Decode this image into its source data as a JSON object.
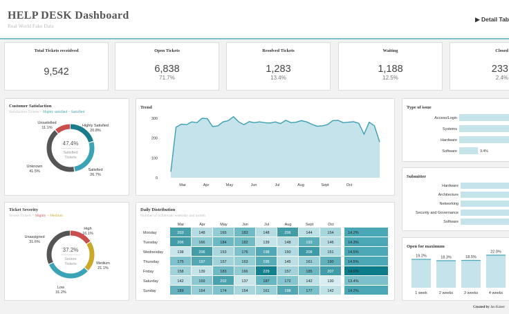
{
  "header": {
    "title": "HELP DESK Dashboard",
    "subtitle": "Real World Fake Data",
    "detail_link": "Detail Tab"
  },
  "kpis": [
    {
      "label": "Total Tickets receidved",
      "value": "9,542",
      "pct": ""
    },
    {
      "label": "Open Tickets",
      "value": "6,838",
      "pct": "71.7%"
    },
    {
      "label": "Resolved Tickets",
      "value": "1,283",
      "pct": "13.4%"
    },
    {
      "label": "Waiting",
      "value": "1,188",
      "pct": "12.5%"
    },
    {
      "label": "Closed",
      "value": "233",
      "pct": "2.4%"
    }
  ],
  "satisfaction": {
    "title": "Customer Satisfaction",
    "sub_prefix": "Satisfaction Tickets",
    "sub_hl1": "Highly satisfied",
    "sub_hl2": "Satisfied",
    "center_pct": "47.4%",
    "center_line1": "Satisfied",
    "center_line2": "Tickets",
    "segments": [
      {
        "name": "Highly Satisfied",
        "pct": "20.8%",
        "value": 20.8,
        "color": "#1a7d8c"
      },
      {
        "name": "Satisfied",
        "pct": "26.7%",
        "value": 26.7,
        "color": "#3aa3b5"
      },
      {
        "name": "Unknown",
        "pct": "41.5%",
        "value": 41.5,
        "color": "#555555"
      },
      {
        "name": "Unsatisfied",
        "pct": "11.1%",
        "value": 11.1,
        "color": "#c94f4f"
      }
    ]
  },
  "severity": {
    "title": "Ticket Severity",
    "sub_prefix": "Severe Tickets",
    "sub_hl1": "Highly",
    "sub_hl2": "Medium",
    "center_pct": "37.2%",
    "center_line1": "Severe",
    "center_line2": "Tickets",
    "segments": [
      {
        "name": "High",
        "pct": "16.1%",
        "value": 16.1,
        "color": "#c94f4f"
      },
      {
        "name": "Medium",
        "pct": "21.1%",
        "value": 21.1,
        "color": "#c9a82a"
      },
      {
        "name": "Low",
        "pct": "31.2%",
        "value": 31.2,
        "color": "#3aa3b5"
      },
      {
        "name": "Unassigned",
        "pct": "31.6%",
        "value": 31.6,
        "color": "#555555"
      }
    ]
  },
  "trend": {
    "title": "Trend",
    "chart_data": {
      "type": "area",
      "color": "#3a9fb2",
      "fill": "#c4e3ea",
      "ylim": [
        0,
        300
      ],
      "yticks": [
        "0",
        "100",
        "200",
        "300"
      ],
      "xticks": [
        "Mar",
        "Apr",
        "May",
        "Jun",
        "Jul",
        "Aug",
        "Sept",
        "Oct"
      ],
      "values": [
        30,
        255,
        270,
        268,
        282,
        278,
        300,
        298,
        258,
        262,
        282,
        288,
        308,
        282,
        268,
        283,
        278,
        282,
        278,
        276,
        282,
        273,
        290,
        278,
        280,
        288,
        282,
        270,
        260,
        262,
        268,
        288,
        290,
        278,
        280,
        283,
        275,
        220,
        280,
        262,
        180
      ]
    }
  },
  "daily": {
    "title": "Daily Distribution",
    "subtitle": "Number of tickets per weekday and month",
    "months": [
      "Mar",
      "Apr",
      "May",
      "Jun",
      "Jul",
      "Aug",
      "Sept",
      "Oct"
    ],
    "rows": [
      {
        "day": "Monday",
        "values": [
          203,
          148,
          165,
          183,
          148,
          206,
          144,
          154
        ],
        "pct": "14.2%",
        "share": 14.2
      },
      {
        "day": "Tuesday",
        "values": [
          206,
          166,
          184,
          182,
          139,
          148,
          193,
          146
        ],
        "pct": "14.3%",
        "share": 14.3
      },
      {
        "day": "Wednesday",
        "values": [
          138,
          206,
          153,
          176,
          198,
          150,
          208,
          151
        ],
        "pct": "14.5%",
        "share": 14.5
      },
      {
        "day": "Thursday",
        "values": [
          175,
          197,
          157,
          163,
          195,
          145,
          161,
          190
        ],
        "pct": "14.5%",
        "share": 14.5
      },
      {
        "day": "Friday",
        "values": [
          158,
          139,
          183,
          166,
          229,
          157,
          185,
          207
        ],
        "pct": "14.9%",
        "share": 14.9
      },
      {
        "day": "Saturday",
        "values": [
          142,
          169,
          202,
          137,
          187,
          172,
          142,
          130
        ],
        "pct": "13.4%",
        "share": 13.4
      },
      {
        "day": "Sunday",
        "values": [
          189,
          164,
          174,
          154,
          161,
          198,
          177,
          142
        ],
        "pct": "14.2%",
        "share": 14.2
      }
    ]
  },
  "issue_type": {
    "title": "Type of issue",
    "items": [
      {
        "label": "Access/Login",
        "value": null,
        "pct": ""
      },
      {
        "label": "Systems",
        "value": null,
        "pct": ""
      },
      {
        "label": "Hardware",
        "value": null,
        "pct": ""
      },
      {
        "label": "Software",
        "value": 9.4,
        "pct": "9.4%"
      }
    ]
  },
  "submitter": {
    "title": "Submitter",
    "items": [
      "Hardware",
      "Architecture",
      "Networking",
      "Security and Governance",
      "Software"
    ]
  },
  "open_max": {
    "title": "Open for maximum",
    "chart_data": {
      "type": "bar",
      "categories": [
        "1 week",
        "2 weeks",
        "3 weeks",
        "4 weeks"
      ],
      "values": [
        19.2,
        18.3,
        18.5,
        22.0
      ],
      "labels": [
        "19.2%",
        "18.3%",
        "18.5%",
        "22.0%"
      ]
    }
  },
  "footer": {
    "prefix": "Created by",
    "author": "Jan Kaiser"
  }
}
